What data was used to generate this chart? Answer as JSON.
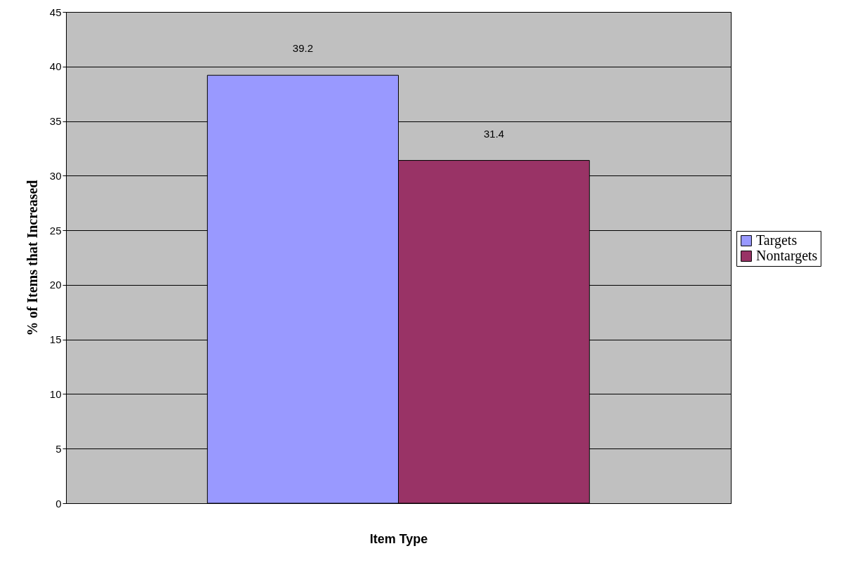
{
  "chart_data": {
    "type": "bar",
    "xlabel": "Item Type",
    "ylabel": "% of Items that Increased",
    "categories": [
      null
    ],
    "series": [
      {
        "name": "Targets",
        "color": "#9999ff",
        "values": [
          39.2
        ]
      },
      {
        "name": "Nontargets",
        "color": "#993366",
        "values": [
          31.4
        ]
      }
    ],
    "ylim": [
      0,
      45
    ],
    "yticks": [
      0,
      5,
      10,
      15,
      20,
      25,
      30,
      35,
      40,
      45
    ],
    "grid": "y",
    "legend": "right",
    "data_labels": true
  }
}
